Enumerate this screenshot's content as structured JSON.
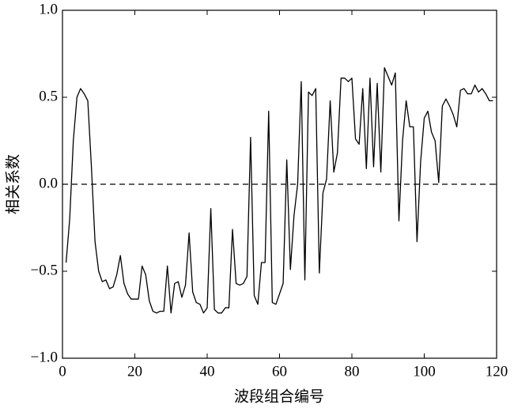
{
  "chart_data": {
    "type": "line",
    "x_label": "波段组合编号",
    "y_label": "相关系数",
    "x": [
      1,
      2,
      3,
      4,
      5,
      6,
      7,
      8,
      9,
      10,
      11,
      12,
      13,
      14,
      15,
      16,
      17,
      18,
      19,
      20,
      21,
      22,
      23,
      24,
      25,
      26,
      27,
      28,
      29,
      30,
      31,
      32,
      33,
      34,
      35,
      36,
      37,
      38,
      39,
      40,
      41,
      42,
      43,
      44,
      45,
      46,
      47,
      48,
      49,
      50,
      51,
      52,
      53,
      54,
      55,
      56,
      57,
      58,
      59,
      60,
      61,
      62,
      63,
      64,
      65,
      66,
      67,
      68,
      69,
      70,
      71,
      72,
      73,
      74,
      75,
      76,
      77,
      78,
      79,
      80,
      81,
      82,
      83,
      84,
      85,
      86,
      87,
      88,
      89,
      90,
      91,
      92,
      93,
      94,
      95,
      96,
      97,
      98,
      99,
      100,
      101,
      102,
      103,
      104,
      105,
      106,
      107,
      108,
      109,
      110,
      111,
      112,
      113,
      114,
      115,
      116,
      117,
      118,
      119
    ],
    "series": [
      {
        "color": "#000000",
        "values": [
          -0.45,
          -0.2,
          0.25,
          0.5,
          0.55,
          0.52,
          0.48,
          0.1,
          -0.33,
          -0.5,
          -0.56,
          -0.55,
          -0.6,
          -0.59,
          -0.52,
          -0.41,
          -0.57,
          -0.63,
          -0.66,
          -0.66,
          -0.66,
          -0.47,
          -0.52,
          -0.67,
          -0.73,
          -0.74,
          -0.73,
          -0.73,
          -0.47,
          -0.74,
          -0.57,
          -0.56,
          -0.65,
          -0.58,
          -0.28,
          -0.62,
          -0.68,
          -0.69,
          -0.74,
          -0.71,
          -0.14,
          -0.72,
          -0.74,
          -0.74,
          -0.71,
          -0.71,
          -0.26,
          -0.57,
          -0.58,
          -0.57,
          -0.53,
          0.27,
          -0.64,
          -0.69,
          -0.45,
          -0.45,
          0.42,
          -0.68,
          -0.69,
          -0.63,
          -0.57,
          0.14,
          -0.49,
          -0.18,
          0,
          0.59,
          -0.55,
          0.53,
          0.51,
          0.55,
          -0.51,
          -0.05,
          0.03,
          0.48,
          0.07,
          0.18,
          0.61,
          0.61,
          0.59,
          0.61,
          0.26,
          0.23,
          0.55,
          0.09,
          0.61,
          0.1,
          0.58,
          0.07,
          0.67,
          0.62,
          0.57,
          0.64,
          -0.21,
          0.25,
          0.48,
          0.33,
          0.33,
          -0.33,
          0.13,
          0.38,
          0.42,
          0.3,
          0.25,
          0.01,
          0.45,
          0.49,
          0.45,
          0.4,
          0.33,
          0.54,
          0.55,
          0.52,
          0.52,
          0.57,
          0.53,
          0.55,
          0.52,
          0.48,
          0.48
        ]
      }
    ],
    "reference_line": {
      "value": 0,
      "style": "dashed"
    },
    "xlim": [
      0,
      120
    ],
    "xticks": [
      0,
      20,
      40,
      60,
      80,
      100,
      120
    ],
    "ylim": [
      -1,
      1
    ],
    "yticks": [
      {
        "value": -1,
        "label": "−1.0"
      },
      {
        "value": -0.5,
        "label": "−0.5"
      },
      {
        "value": 0,
        "label": "0.0"
      },
      0.5,
      {
        "value": 1,
        "label": "1.0"
      }
    ],
    "grid": false
  }
}
